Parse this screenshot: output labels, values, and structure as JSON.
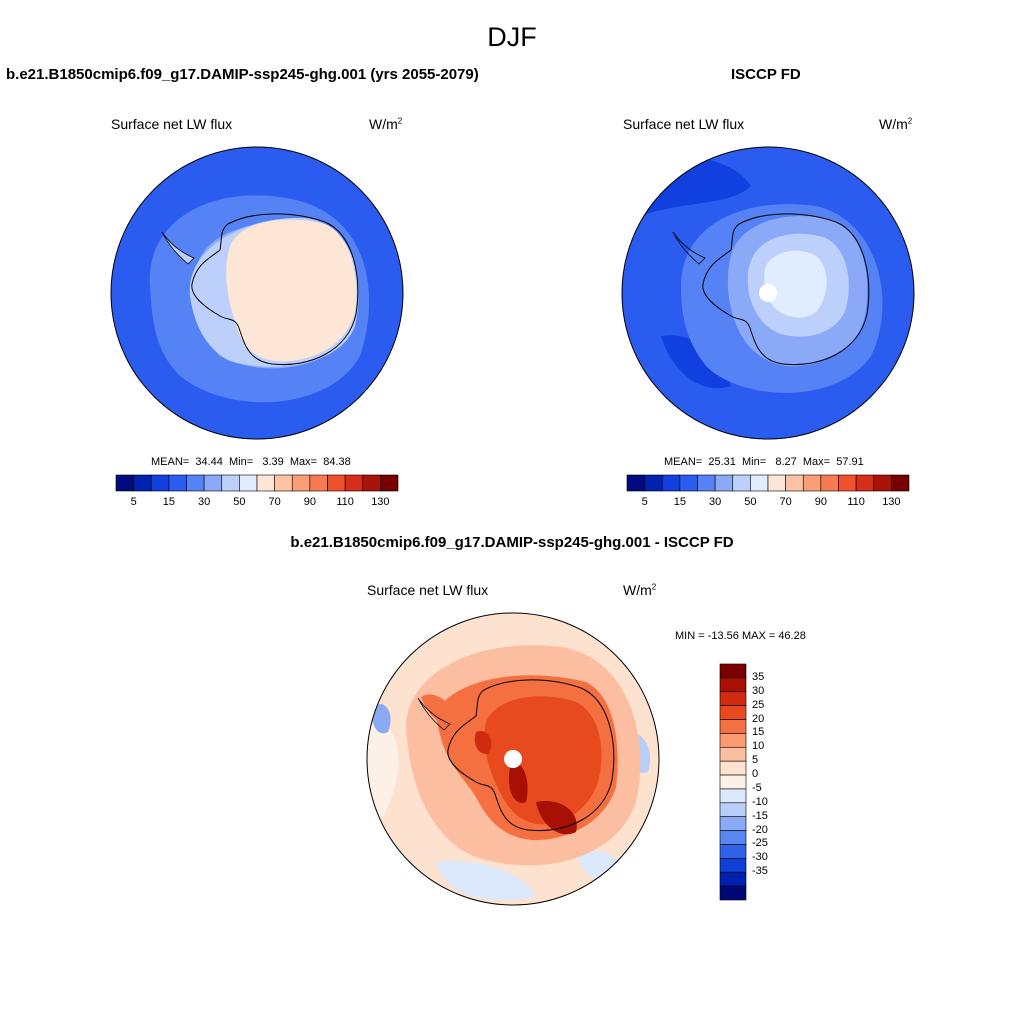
{
  "figure": {
    "title": "DJF"
  },
  "panels": [
    {
      "id": "model",
      "title": "b.e21.B1850cmip6.f09_g17.DAMIP-ssp245-ghg.001 (yrs 2055-2079)",
      "variable": "Surface net LW flux",
      "units_base": "W/m",
      "units_exp": "2",
      "stats": {
        "mean_label": "MEAN=",
        "mean": "34.44",
        "min_label": "Min=",
        "min": "3.39",
        "max_label": "Max=",
        "max": "84.38"
      }
    },
    {
      "id": "obs",
      "title": "ISCCP FD",
      "variable": "Surface net LW flux",
      "units_base": "W/m",
      "units_exp": "2",
      "stats": {
        "mean_label": "MEAN=",
        "mean": "25.31",
        "min_label": "Min=",
        "min": "8.27",
        "max_label": "Max=",
        "max": "57.91"
      }
    },
    {
      "id": "diff",
      "title": "b.e21.B1850cmip6.f09_g17.DAMIP-ssp245-ghg.001 - ISCCP FD",
      "variable": "Surface net LW flux",
      "units_base": "W/m",
      "units_exp": "2",
      "stats_text": "MIN = -13.56 MAX =  46.28"
    }
  ],
  "colorbars": {
    "abs": {
      "colors": [
        "#000b80",
        "#0022b0",
        "#1040e0",
        "#2a5cf0",
        "#5582f5",
        "#8aaaf8",
        "#bcd0fb",
        "#e0ecff",
        "#fde6d6",
        "#fcc2a2",
        "#fb9e78",
        "#f77a50",
        "#f0522c",
        "#d62e18",
        "#aa1408",
        "#780000"
      ],
      "tick_labels": [
        "5",
        "15",
        "30",
        "50",
        "70",
        "90",
        "110",
        "130"
      ]
    },
    "diff": {
      "colors": [
        "#7a0000",
        "#a81005",
        "#d02a10",
        "#e84a20",
        "#f57040",
        "#fb9a70",
        "#fcbea0",
        "#fde2d0",
        "#fdf0e6",
        "#dce8fb",
        "#b8cdf8",
        "#8aaaf5",
        "#5a86f0",
        "#3062e8",
        "#1040d8",
        "#0020b0",
        "#000878"
      ],
      "tick_labels": [
        "35",
        "30",
        "25",
        "20",
        "15",
        "10",
        "5",
        "0",
        "-5",
        "-10",
        "-15",
        "-20",
        "-25",
        "-30",
        "-35"
      ]
    }
  },
  "colors": {
    "land_ice_model": "#fde6d6",
    "land_ice_light": "#e0ecff",
    "ocean_mid": "#2a5cf0",
    "ocean_light": "#5582f5",
    "ocean_dark": "#1040e0",
    "diff_background": "#fde2d0"
  }
}
